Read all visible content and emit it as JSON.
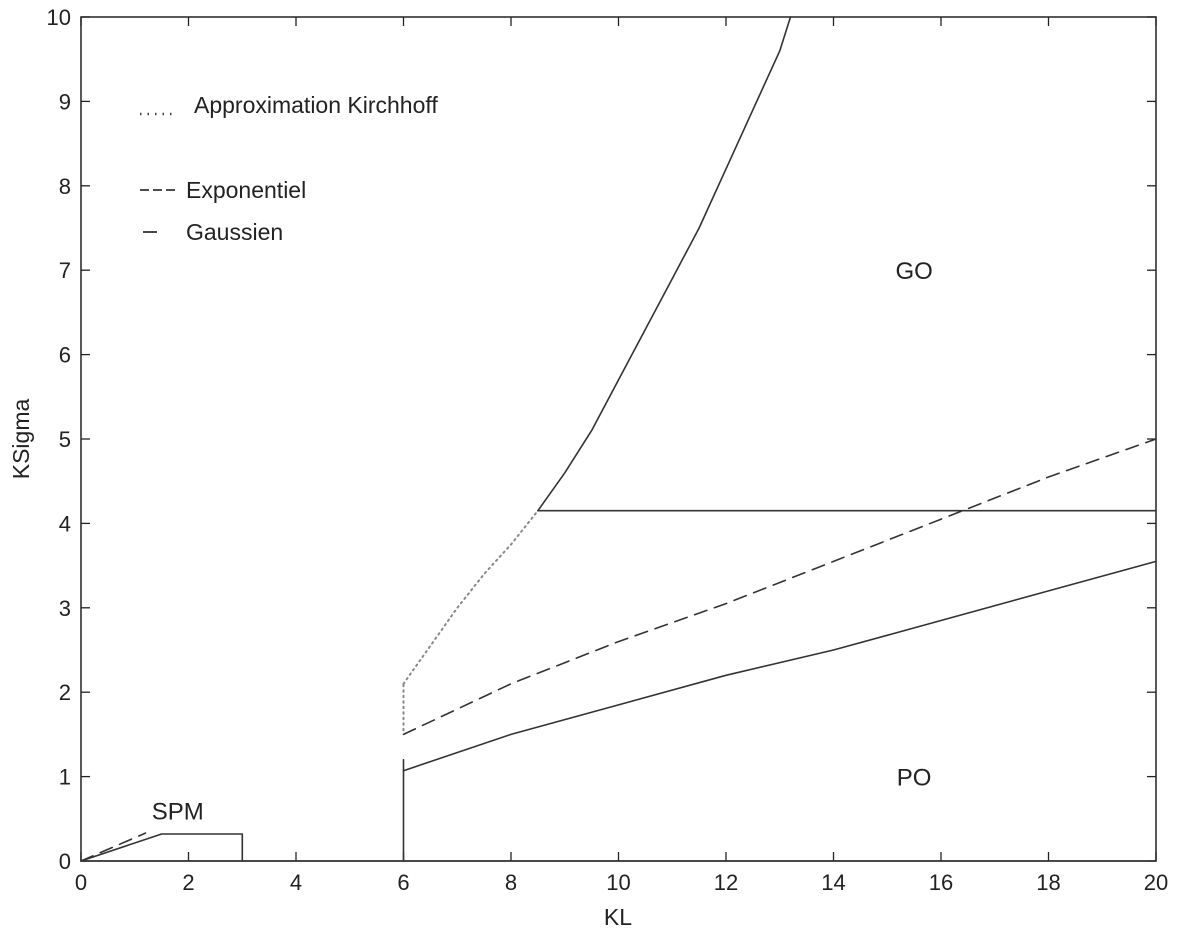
{
  "chart_data": {
    "type": "line",
    "title": "",
    "xlabel": "KL",
    "ylabel": "KSigma",
    "xlim": [
      0,
      20
    ],
    "ylim": [
      0,
      10
    ],
    "xticks": [
      0,
      2,
      4,
      6,
      8,
      10,
      12,
      14,
      16,
      18,
      20
    ],
    "yticks": [
      0,
      1,
      2,
      3,
      4,
      5,
      6,
      7,
      8,
      9,
      10
    ],
    "grid": false,
    "legend_placement": "top-left",
    "legend": [
      {
        "symbol": "....",
        "label": "Approximation Kirchhoff",
        "style": "dotted"
      },
      {
        "symbol": "---",
        "label": "Exponentiel",
        "style": "dashed"
      },
      {
        "symbol": "–",
        "label": "Gaussien",
        "style": "solid"
      }
    ],
    "regions": [
      {
        "label": "GO",
        "x": 15.5,
        "y": 7.0
      },
      {
        "label": "PO",
        "x": 15.5,
        "y": 1.0
      },
      {
        "label": "SPM",
        "x": 1.8,
        "y": 0.6
      }
    ],
    "series": [
      {
        "style": "solid",
        "points": [
          [
            8.5,
            4.15
          ],
          [
            9.0,
            4.6
          ],
          [
            9.5,
            5.1
          ],
          [
            10.0,
            5.7
          ],
          [
            10.5,
            6.3
          ],
          [
            11.0,
            6.9
          ],
          [
            11.5,
            7.5
          ],
          [
            12.0,
            8.2
          ],
          [
            12.5,
            8.9
          ],
          [
            13.0,
            9.6
          ],
          [
            13.2,
            10.0
          ]
        ]
      },
      {
        "style": "solid",
        "points": [
          [
            8.5,
            4.15
          ],
          [
            20.0,
            4.15
          ]
        ]
      },
      {
        "style": "dotted",
        "points": [
          [
            6.0,
            2.1
          ],
          [
            6.5,
            2.55
          ],
          [
            7.0,
            3.0
          ],
          [
            7.5,
            3.4
          ],
          [
            8.0,
            3.75
          ],
          [
            8.5,
            4.15
          ]
        ]
      },
      {
        "style": "dotted",
        "points": [
          [
            6.0,
            1.55
          ],
          [
            6.0,
            2.1
          ]
        ]
      },
      {
        "style": "dashed",
        "points": [
          [
            6.0,
            1.5
          ],
          [
            8.0,
            2.1
          ],
          [
            10.0,
            2.6
          ],
          [
            12.0,
            3.05
          ],
          [
            14.0,
            3.55
          ],
          [
            16.0,
            4.05
          ],
          [
            18.0,
            4.55
          ],
          [
            20.0,
            5.0
          ]
        ]
      },
      {
        "style": "solid",
        "points": [
          [
            6.0,
            1.07
          ],
          [
            8.0,
            1.5
          ],
          [
            10.0,
            1.85
          ],
          [
            12.0,
            2.2
          ],
          [
            14.0,
            2.5
          ],
          [
            16.0,
            2.85
          ],
          [
            18.0,
            3.2
          ],
          [
            20.0,
            3.55
          ]
        ]
      },
      {
        "style": "solid",
        "points": [
          [
            6.0,
            0.0
          ],
          [
            6.0,
            1.2
          ]
        ]
      },
      {
        "style": "solid",
        "points": [
          [
            0.0,
            0.0
          ],
          [
            1.5,
            0.32
          ],
          [
            3.0,
            0.32
          ],
          [
            3.0,
            0.0
          ]
        ]
      },
      {
        "style": "dashed",
        "points": [
          [
            0.0,
            0.0
          ],
          [
            1.2,
            0.33
          ]
        ]
      },
      {
        "style": "solid",
        "points": [
          [
            0.0,
            0.0
          ],
          [
            20.0,
            0.0
          ]
        ]
      }
    ]
  }
}
